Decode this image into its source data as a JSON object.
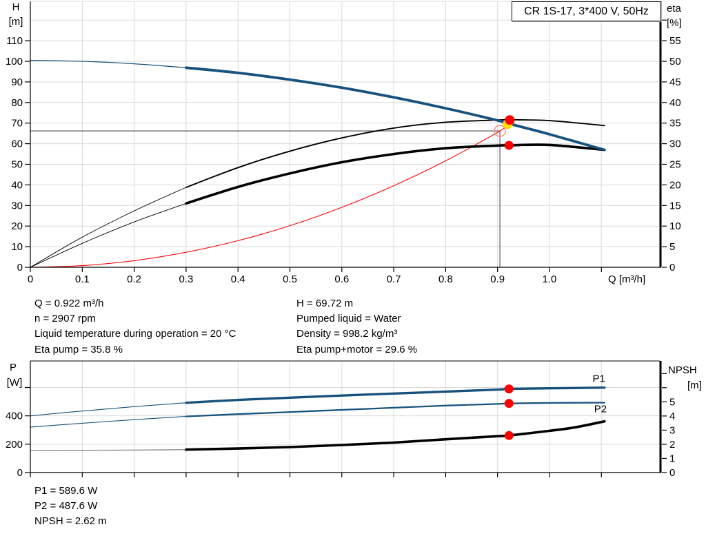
{
  "title_box": "CR 1S-17, 3*400 V, 50Hz",
  "axes": {
    "h": "H",
    "h_unit": "[m]",
    "eta": "eta",
    "eta_unit": "[%]",
    "q": "Q [m³/h]",
    "p": "P",
    "p_unit": "[W]",
    "npsh": "NPSH",
    "npsh_unit": "[m]"
  },
  "colors": {
    "curve_blue": "#17527e",
    "curve_black": "#000000",
    "curve_red": "#ff0000",
    "open_circle_red": "#ff8585",
    "duty_yellow": "#ffdf00",
    "grid": "#d9d9d9",
    "ref_line": "#4d4d4d",
    "npsh_thin_gray": "#9a9a9a"
  },
  "annotations": {
    "left": [
      "Q = 0.922 m³/h",
      "n = 2907 rpm",
      "Liquid temperature during operation = 20 °C",
      "Eta pump = 35.8 %"
    ],
    "right": [
      "H = 69.72 m",
      "Pumped liquid = Water",
      "Density = 998.2 kg/m³",
      "Eta pump+motor = 29.6 %"
    ],
    "bottom": [
      "P1 = 589.6 W",
      "P2 = 487.6 W",
      "NPSH = 2.62 m"
    ]
  },
  "duty_point": {
    "Q_m3h": 0.922,
    "H_m": 69.72,
    "eta_pump_pct": 35.8,
    "eta_pump_motor_pct": 29.6,
    "P1_W": 589.6,
    "P2_W": 487.6,
    "NPSH_m": 2.62,
    "n_rpm": 2907
  },
  "chart_data": [
    {
      "type": "line",
      "name": "qh-eta-chart",
      "x_axis": {
        "min": 0,
        "max": 1.2125,
        "ticks": [
          {
            "q": 0,
            "label": "0"
          },
          {
            "q": 0.1,
            "label": "0.1"
          },
          {
            "q": 0.2,
            "label": "0.2"
          },
          {
            "q": 0.3,
            "label": "0.3"
          },
          {
            "q": 0.4,
            "label": "0.4"
          },
          {
            "q": 0.5,
            "label": "0.5"
          },
          {
            "q": 0.6,
            "label": "0.6"
          },
          {
            "q": 0.7,
            "label": "0.7"
          },
          {
            "q": 0.8,
            "label": "0.8"
          },
          {
            "q": 0.9,
            "label": "0.9"
          },
          {
            "q": 1.0,
            "label": "1.0"
          },
          {
            "q": 1.1
          }
        ],
        "grid": [
          0.1,
          0.2,
          0.3,
          0.4,
          0.5,
          0.6,
          0.7,
          0.8,
          0.9,
          1.0,
          1.1
        ]
      },
      "y_left": {
        "label": "H [m]",
        "min": 0,
        "max": 129.1,
        "ticks": [
          {
            "v": 0,
            "label": "0"
          },
          {
            "v": 10,
            "label": "10"
          },
          {
            "v": 20,
            "label": "20"
          },
          {
            "v": 30,
            "label": "30"
          },
          {
            "v": 40,
            "label": "40"
          },
          {
            "v": 50,
            "label": "50"
          },
          {
            "v": 60,
            "label": "60"
          },
          {
            "v": 70,
            "label": "70"
          },
          {
            "v": 80,
            "label": "80"
          },
          {
            "v": 90,
            "label": "90"
          },
          {
            "v": 100,
            "label": "100"
          },
          {
            "v": 110,
            "label": "110"
          }
        ],
        "grid": [
          10,
          20,
          30,
          40,
          50,
          60,
          70,
          80,
          90,
          100,
          110,
          120
        ]
      },
      "y_right": {
        "label": "eta [%]",
        "min": 0,
        "max": 64.55,
        "ticks": [
          {
            "v": 0,
            "label": "0"
          },
          {
            "v": 5,
            "label": "5"
          },
          {
            "v": 10,
            "label": "10"
          },
          {
            "v": 15,
            "label": "15"
          },
          {
            "v": 20,
            "label": "20"
          },
          {
            "v": 25,
            "label": "25"
          },
          {
            "v": 30,
            "label": "30"
          },
          {
            "v": 35,
            "label": "35"
          },
          {
            "v": 40,
            "label": "40"
          },
          {
            "v": 45,
            "label": "45"
          },
          {
            "v": 50,
            "label": "50"
          },
          {
            "v": 55,
            "label": "55"
          },
          {
            "v": 60
          }
        ],
        "grid": []
      },
      "series": [
        {
          "name": "system-curve",
          "axis": "L",
          "color": "#ff0000",
          "thin": 1.1,
          "thick": 1.1,
          "split": null,
          "points": [
            [
              0,
              0
            ],
            [
              0.1,
              0.8
            ],
            [
              0.2,
              3.2
            ],
            [
              0.3,
              7.3
            ],
            [
              0.4,
              12.9
            ],
            [
              0.5,
              20.2
            ],
            [
              0.6,
              29.1
            ],
            [
              0.7,
              39.6
            ],
            [
              0.8,
              51.7
            ],
            [
              0.9045,
              66.2
            ],
            [
              0.922,
              69.72
            ]
          ]
        },
        {
          "name": "eta-pump-curve",
          "axis": "R",
          "color": "#000000",
          "thin": 0.9,
          "thick": 1.9,
          "split": 0.3,
          "points": [
            [
              0,
              0
            ],
            [
              0.1,
              7.3
            ],
            [
              0.2,
              13.7
            ],
            [
              0.3,
              19.4
            ],
            [
              0.4,
              24.2
            ],
            [
              0.5,
              28.2
            ],
            [
              0.6,
              31.4
            ],
            [
              0.7,
              33.8
            ],
            [
              0.8,
              35.2
            ],
            [
              0.9,
              35.75
            ],
            [
              0.922,
              35.8
            ],
            [
              1.0,
              35.6
            ],
            [
              1.106,
              34.4
            ]
          ]
        },
        {
          "name": "eta-pump-motor-curve",
          "axis": "R",
          "color": "#000000",
          "thin": 0.9,
          "thick": 3.6,
          "split": 0.3,
          "points": [
            [
              0,
              0
            ],
            [
              0.1,
              5.8
            ],
            [
              0.2,
              11.0
            ],
            [
              0.3,
              15.5
            ],
            [
              0.4,
              19.5
            ],
            [
              0.5,
              22.8
            ],
            [
              0.6,
              25.5
            ],
            [
              0.7,
              27.5
            ],
            [
              0.8,
              28.9
            ],
            [
              0.9,
              29.55
            ],
            [
              0.922,
              29.6
            ],
            [
              1.0,
              29.7
            ],
            [
              1.106,
              28.5
            ]
          ]
        },
        {
          "name": "qh-curve",
          "axis": "L",
          "color": "#17527e",
          "thin": 1.2,
          "thick": 3.8,
          "split": 0.3,
          "points": [
            [
              0,
              100.5
            ],
            [
              0.1,
              100.0
            ],
            [
              0.2,
              98.8
            ],
            [
              0.3,
              96.9
            ],
            [
              0.4,
              94.4
            ],
            [
              0.5,
              91.1
            ],
            [
              0.6,
              87.2
            ],
            [
              0.7,
              82.5
            ],
            [
              0.8,
              77.2
            ],
            [
              0.9,
              71.3
            ],
            [
              0.922,
              69.72
            ],
            [
              1.0,
              64.6
            ],
            [
              1.106,
              57.0
            ]
          ]
        }
      ],
      "ref_lines": [
        {
          "type": "h",
          "axis": "L",
          "v": 66.2,
          "q1": 0,
          "q2": 0.9045
        },
        {
          "type": "v",
          "axis": "L",
          "q": 0.9045,
          "v1": 66.2,
          "v2": 0
        }
      ],
      "markers": [
        {
          "name": "requested-duty-point",
          "shape": "open-circle",
          "axis": "L",
          "q": 0.9045,
          "v": 66.2,
          "r": 8,
          "stroke": "#ff8585"
        },
        {
          "name": "duty-point-qh",
          "shape": "dot",
          "axis": "L",
          "q": 0.9195,
          "v": 69.5,
          "r": 7,
          "fill": "#ffdf00"
        },
        {
          "name": "duty-point-eta-pump",
          "shape": "dot",
          "axis": "R",
          "q": 0.9235,
          "v": 35.75,
          "r": 7,
          "fill": "#ff0000"
        },
        {
          "name": "duty-point-eta-pump-motor",
          "shape": "dot",
          "axis": "R",
          "q": 0.922,
          "v": 29.6,
          "r": 6.5,
          "fill": "#ff0000"
        }
      ],
      "curve_labels": []
    },
    {
      "type": "line",
      "name": "power-npsh-chart",
      "x_axis": {
        "min": 0,
        "max": 1.2125,
        "ticks": [
          {
            "q": 0
          },
          {
            "q": 0.1
          },
          {
            "q": 0.2
          },
          {
            "q": 0.3
          },
          {
            "q": 0.4
          },
          {
            "q": 0.5
          },
          {
            "q": 0.6
          },
          {
            "q": 0.7
          },
          {
            "q": 0.8
          },
          {
            "q": 0.9
          },
          {
            "q": 1.0
          },
          {
            "q": 1.1
          }
        ],
        "grid": [
          0.1,
          0.2,
          0.3,
          0.4,
          0.5,
          0.6,
          0.7,
          0.8,
          0.9,
          1.0,
          1.1
        ]
      },
      "y_left": {
        "label": "P [W]",
        "min": 0,
        "max": 787,
        "ticks": [
          {
            "v": 0,
            "label": "0"
          },
          {
            "v": 200,
            "label": "200"
          },
          {
            "v": 400,
            "label": "400"
          },
          {
            "v": 600
          }
        ],
        "grid": [
          200,
          400,
          600
        ]
      },
      "y_right": {
        "label": "NPSH [m]",
        "min": 0,
        "max": 7.89,
        "ticks": [
          {
            "v": 0,
            "label": "0"
          },
          {
            "v": 1,
            "label": "1"
          },
          {
            "v": 2,
            "label": "2"
          },
          {
            "v": 3,
            "label": "3"
          },
          {
            "v": 4,
            "label": "4"
          },
          {
            "v": 5,
            "label": "5"
          },
          {
            "v": 6
          },
          {
            "v": 7
          }
        ],
        "grid": []
      },
      "series": [
        {
          "name": "npsh-curve",
          "axis": "R",
          "color": "#000000",
          "thin_color": "#9a9a9a",
          "thin": 1.6,
          "thick": 3.6,
          "split": 0.3,
          "points": [
            [
              0,
              1.56
            ],
            [
              0.1,
              1.57
            ],
            [
              0.2,
              1.59
            ],
            [
              0.3,
              1.62
            ],
            [
              0.4,
              1.7
            ],
            [
              0.5,
              1.8
            ],
            [
              0.6,
              1.95
            ],
            [
              0.7,
              2.12
            ],
            [
              0.8,
              2.35
            ],
            [
              0.9,
              2.57
            ],
            [
              0.922,
              2.62
            ],
            [
              1.0,
              2.95
            ],
            [
              1.05,
              3.2
            ],
            [
              1.106,
              3.62
            ]
          ]
        },
        {
          "name": "p2-curve",
          "axis": "L",
          "color": "#17527e",
          "thin": 1.1,
          "thick": 2.3,
          "split": 0.3,
          "points": [
            [
              0,
              320
            ],
            [
              0.1,
              348
            ],
            [
              0.2,
              373
            ],
            [
              0.3,
              396
            ],
            [
              0.4,
              412
            ],
            [
              0.5,
              427
            ],
            [
              0.6,
              442
            ],
            [
              0.7,
              457
            ],
            [
              0.8,
              472
            ],
            [
              0.9,
              484
            ],
            [
              0.922,
              487.6
            ],
            [
              1.0,
              491
            ],
            [
              1.106,
              493
            ]
          ]
        },
        {
          "name": "p1-curve",
          "axis": "L",
          "color": "#17527e",
          "thin": 1.1,
          "thick": 3.4,
          "split": 0.3,
          "points": [
            [
              0,
              400
            ],
            [
              0.1,
              434
            ],
            [
              0.2,
              465
            ],
            [
              0.3,
              492
            ],
            [
              0.4,
              512
            ],
            [
              0.5,
              528
            ],
            [
              0.6,
              543
            ],
            [
              0.7,
              557
            ],
            [
              0.8,
              571
            ],
            [
              0.9,
              585
            ],
            [
              0.922,
              589.6
            ],
            [
              1.0,
              594
            ],
            [
              1.106,
              599
            ]
          ]
        }
      ],
      "ref_lines": [],
      "markers": [
        {
          "name": "duty-point-p1",
          "shape": "dot",
          "axis": "L",
          "q": 0.922,
          "v": 589.6,
          "r": 6.5,
          "fill": "#ff0000"
        },
        {
          "name": "duty-point-p2",
          "shape": "dot",
          "axis": "L",
          "q": 0.922,
          "v": 487.6,
          "r": 6.5,
          "fill": "#ff0000"
        },
        {
          "name": "duty-point-npsh",
          "shape": "dot",
          "axis": "R",
          "q": 0.922,
          "v": 2.62,
          "r": 6.5,
          "fill": "#ff0000"
        }
      ],
      "curve_labels": [
        {
          "text": "P1",
          "axis": "L",
          "q": 1.083,
          "v": 662
        },
        {
          "text": "P2",
          "axis": "L",
          "q": 1.086,
          "v": 450
        }
      ]
    }
  ]
}
